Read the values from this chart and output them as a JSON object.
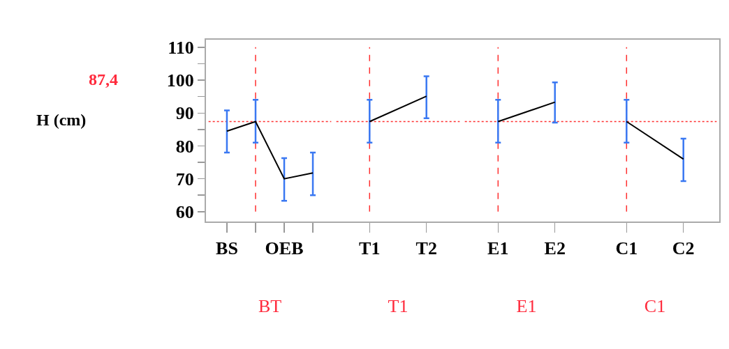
{
  "chart_data": [
    {
      "type": "line",
      "categories": [
        "BS",
        null,
        "OEB",
        null
      ],
      "ylim": [
        57,
        112.3
      ],
      "yticks": [
        60,
        {
          "value": 65,
          "label": null
        },
        70,
        {
          "value": 75,
          "label": null
        },
        80,
        {
          "value": 85,
          "label": null
        },
        90,
        {
          "value": 95,
          "label": null
        },
        100,
        {
          "value": 105,
          "label": null
        },
        110
      ],
      "xlabel": "BT",
      "ylabel": "H (cm)",
      "annotations": [
        "87,4"
      ],
      "grid": false,
      "marker": "none",
      "line_style": "solid",
      "series": [
        {
          "color": "#000000",
          "values": [
            84.5,
            87.4,
            70.0,
            71.8
          ],
          "errors": [
            [
              78,
              90.8
            ],
            [
              81,
              94
            ],
            [
              63.3,
              76.3
            ],
            [
              65,
              78
            ]
          ]
        }
      ],
      "ref_lines": [
        {
          "axis": "y",
          "value": 87.4,
          "color": "#ff3030",
          "line_style": "dotted"
        }
      ]
    },
    {
      "type": "line",
      "categories": [
        "T1",
        "T2"
      ],
      "ylim": [
        57,
        112.3
      ],
      "xlabel": "T1",
      "tick_labels": "x",
      "grid": false,
      "marker": "none",
      "line_style": "solid",
      "series": [
        {
          "color": "#000000",
          "values": [
            87.4,
            95.1
          ],
          "errors": [
            [
              81,
              94
            ],
            [
              88.4,
              101.2
            ]
          ]
        }
      ],
      "ref_lines": [
        {
          "axis": "y",
          "value": 87.4,
          "color": "#ff3030",
          "line_style": "dotted"
        },
        {
          "axis": "x",
          "value": "T1",
          "color": "#ff3030",
          "line_style": "dashed"
        }
      ]
    },
    {
      "type": "line",
      "categories": [
        "E1",
        "E2"
      ],
      "ylim": [
        57,
        112.3
      ],
      "xlabel": "E1",
      "tick_labels": "x",
      "grid": false,
      "marker": "none",
      "line_style": "solid",
      "series": [
        {
          "color": "#000000",
          "values": [
            87.4,
            93.3
          ],
          "errors": [
            [
              81,
              94
            ],
            [
              87.1,
              99.3
            ]
          ]
        }
      ],
      "ref_lines": [
        {
          "axis": "y",
          "value": 87.4,
          "color": "#ff3030",
          "line_style": "dotted"
        },
        {
          "axis": "x",
          "value": "E1",
          "color": "#ff3030",
          "line_style": "dashed"
        }
      ]
    },
    {
      "type": "line",
      "categories": [
        "C1",
        "C2"
      ],
      "ylim": [
        57,
        112.3
      ],
      "xlabel": "C1",
      "tick_labels": "x",
      "grid": false,
      "marker": "none",
      "line_style": "solid",
      "series": [
        {
          "color": "#000000",
          "values": [
            87.4,
            76.0
          ],
          "errors": [
            [
              81,
              94
            ],
            [
              69.3,
              82.2
            ]
          ]
        }
      ],
      "ref_lines": [
        {
          "axis": "y",
          "value": 87.4,
          "color": "#ff3030",
          "line_style": "dotted"
        },
        {
          "axis": "x",
          "value": "C1",
          "color": "#ff3030",
          "line_style": "dashed"
        }
      ]
    }
  ]
}
